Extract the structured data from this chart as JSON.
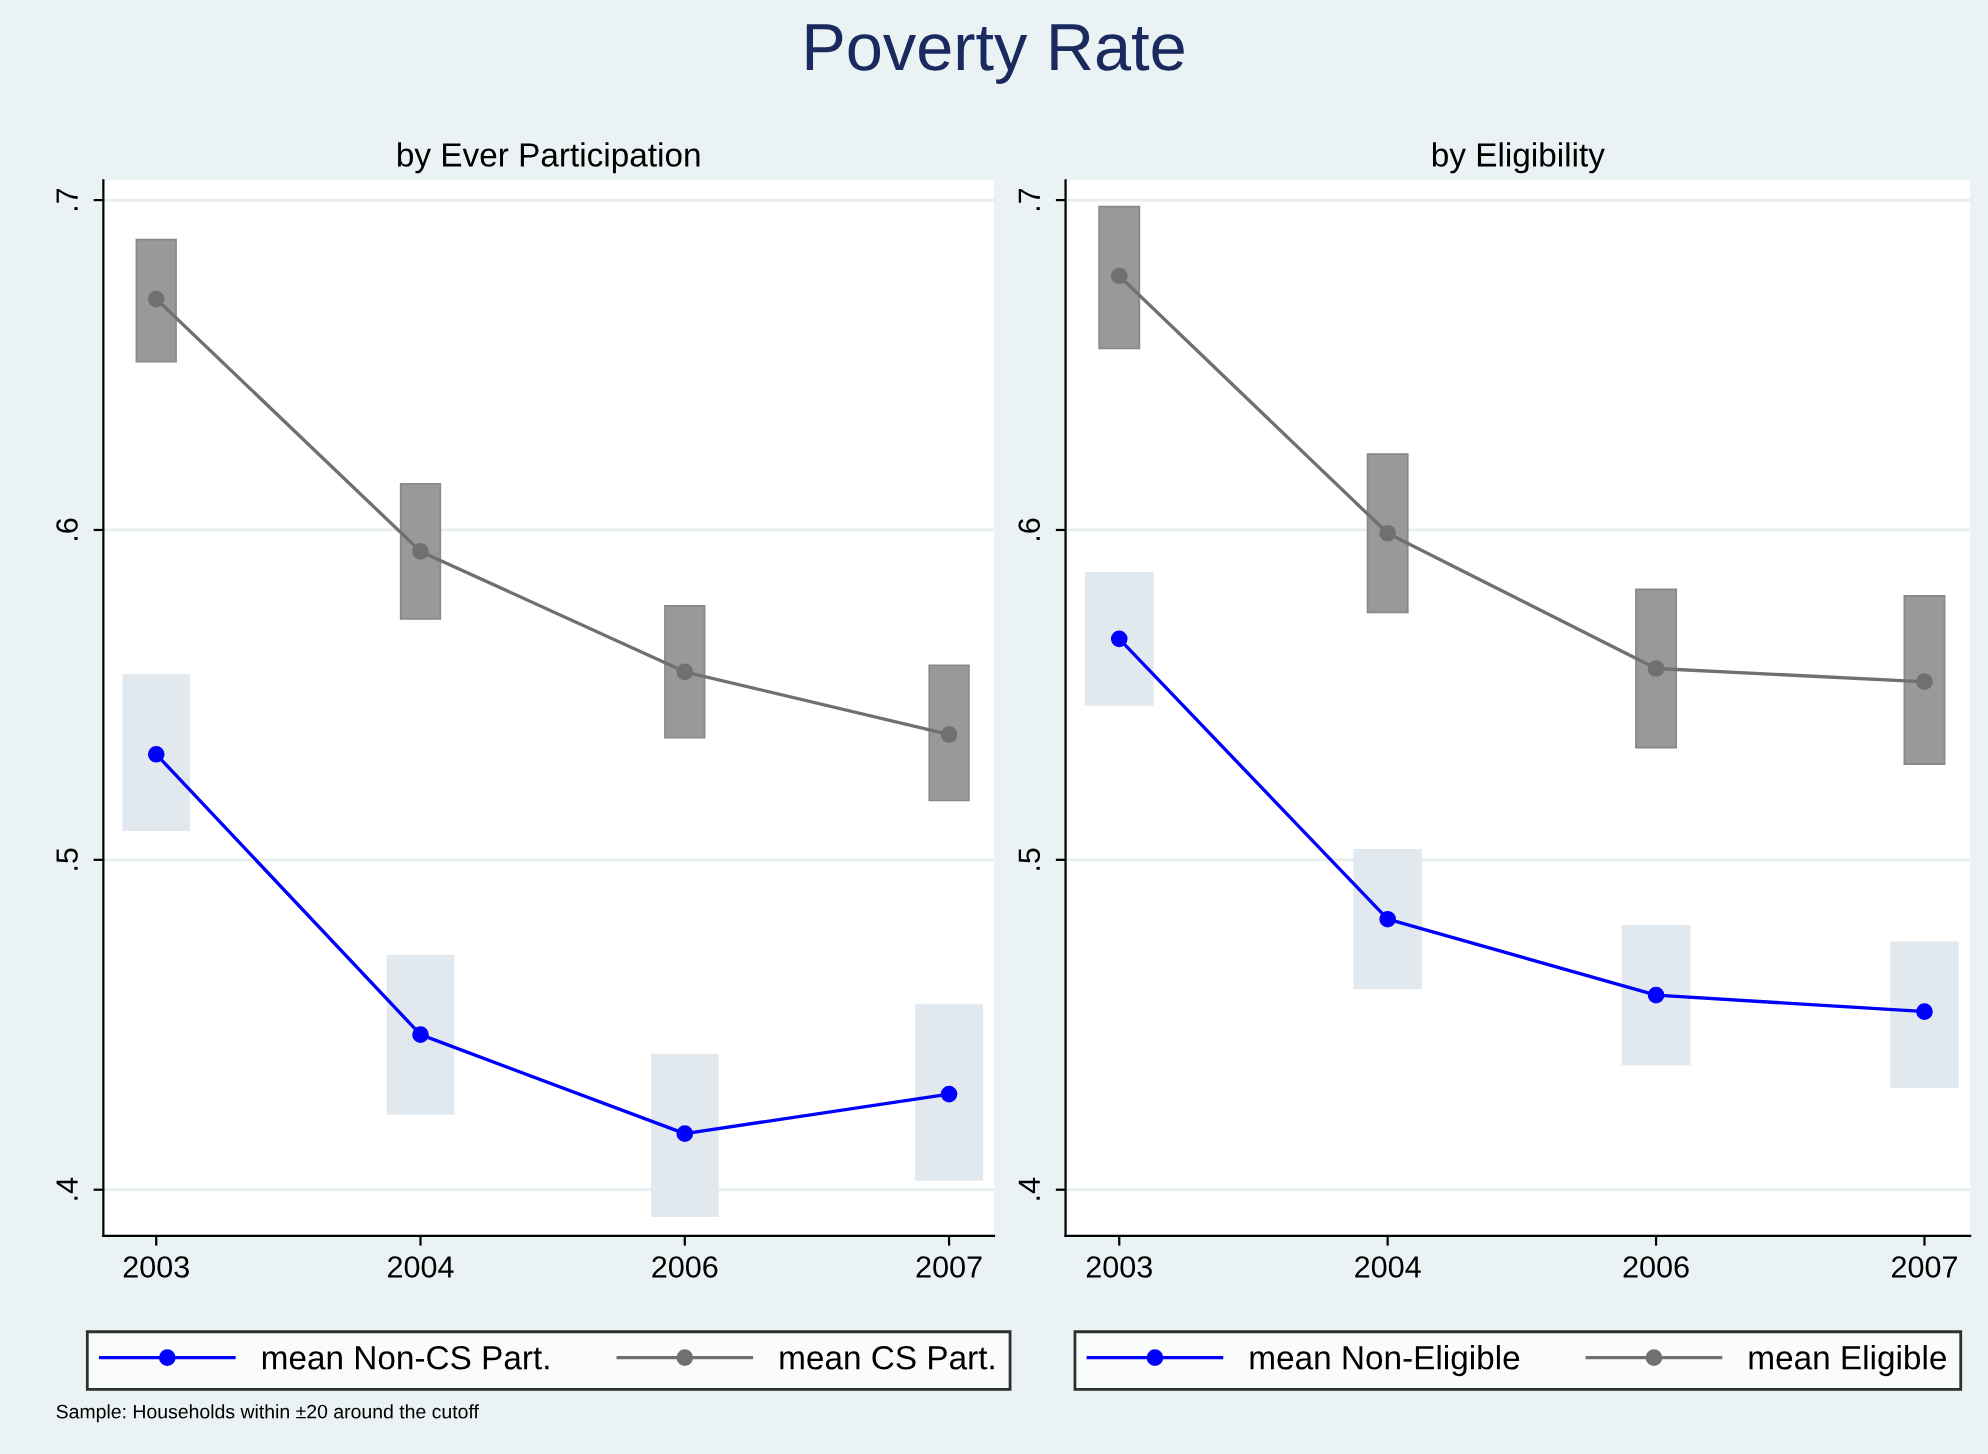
{
  "chart_data": [
    {
      "type": "line",
      "title": "Poverty Rate",
      "subtitle": "by Ever Participation",
      "categories": [
        "2003",
        "2004",
        "2006",
        "2007"
      ],
      "ylim": [
        0.386,
        0.706
      ],
      "yticks": [
        {
          "value": 0.4,
          "label": ".4"
        },
        {
          "value": 0.5,
          "label": ".5"
        },
        {
          "value": 0.6,
          "label": ".6"
        },
        {
          "value": 0.7,
          "label": ".7"
        }
      ],
      "grid": "y",
      "legend": "bottom",
      "marker": "circle",
      "annotations": [
        "Sample: Households within ±20 around the cutoff"
      ],
      "series": [
        {
          "type": "bar",
          "color": "#e1e9ef",
          "base": [
            0.509,
            0.423,
            0.392,
            0.403
          ],
          "values": [
            0.047,
            0.048,
            0.049,
            0.053
          ]
        },
        {
          "type": "bar",
          "color": "#999999",
          "base": [
            0.651,
            0.573,
            0.537,
            0.518
          ],
          "values": [
            0.037,
            0.041,
            0.04,
            0.041
          ]
        },
        {
          "name": "mean Non-CS Part.",
          "color": "#0000ff",
          "values": [
            0.532,
            0.447,
            0.417,
            0.429
          ]
        },
        {
          "name": "mean CS Part.",
          "color": "#707070",
          "values": [
            0.67,
            0.5935,
            0.557,
            0.538
          ]
        }
      ]
    },
    {
      "type": "line",
      "subtitle": "by Eligibility",
      "categories": [
        "2003",
        "2004",
        "2006",
        "2007"
      ],
      "ylim": [
        0.386,
        0.706
      ],
      "yticks": [
        {
          "value": 0.4,
          "label": ".4"
        },
        {
          "value": 0.5,
          "label": ".5"
        },
        {
          "value": 0.6,
          "label": ".6"
        },
        {
          "value": 0.7,
          "label": ".7"
        }
      ],
      "grid": "y",
      "legend": "bottom",
      "marker": "circle",
      "series": [
        {
          "type": "bar",
          "color": "#e1e9ef",
          "base": [
            0.547,
            0.461,
            0.438,
            0.431
          ],
          "values": [
            0.04,
            0.042,
            0.042,
            0.044
          ]
        },
        {
          "type": "bar",
          "color": "#999999",
          "base": [
            0.655,
            0.575,
            0.534,
            0.529
          ],
          "values": [
            0.043,
            0.048,
            0.048,
            0.051
          ]
        },
        {
          "name": "mean Non-Eligible",
          "color": "#0000ff",
          "values": [
            0.567,
            0.482,
            0.459,
            0.454
          ]
        },
        {
          "name": "mean Eligible",
          "color": "#707070",
          "values": [
            0.677,
            0.599,
            0.558,
            0.554
          ]
        }
      ]
    }
  ]
}
